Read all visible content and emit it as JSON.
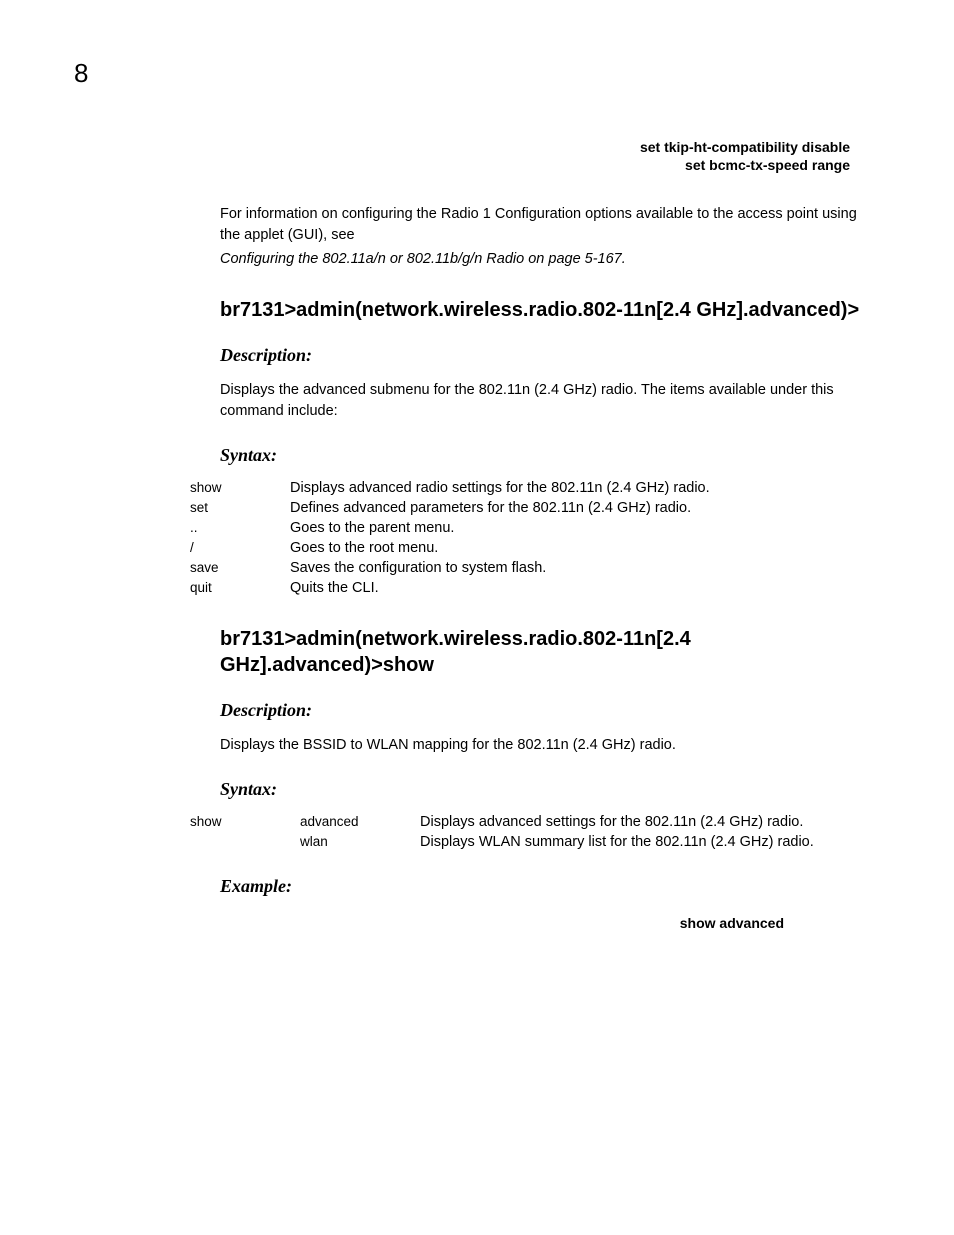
{
  "page_number": "8",
  "code_block_top": {
    "line1": "set tkip-ht-compatibility disable",
    "line2": "set bcmc-tx-speed range"
  },
  "intro_paragraph": "For information on configuring the Radio 1 Configuration options available to the access point using the applet (GUI), see",
  "intro_reference": "Configuring the 802.11a/n or 802.11b/g/n Radio on page 5-167.",
  "section1": {
    "heading": "br7131>admin(network.wireless.radio.802-11n[2.4 GHz].advanced)>",
    "description_label": "Description:",
    "description_text": "Displays the advanced submenu for the 802.11n (2.4 GHz) radio. The items available under this command include:",
    "syntax_label": "Syntax:",
    "syntax_rows": [
      {
        "cmd": "show",
        "desc": "Displays advanced radio settings for the 802.11n (2.4 GHz) radio."
      },
      {
        "cmd": "set",
        "desc": "Defines advanced parameters for the 802.11n (2.4 GHz) radio."
      },
      {
        "cmd": "..",
        "desc": "Goes to the parent menu."
      },
      {
        "cmd": "/",
        "desc": "Goes to the root menu."
      },
      {
        "cmd": "save",
        "desc": "Saves the configuration to system flash."
      },
      {
        "cmd": "quit",
        "desc": "Quits the CLI."
      }
    ]
  },
  "section2": {
    "heading": "br7131>admin(network.wireless.radio.802-11n[2.4 GHz].advanced)>show",
    "description_label": "Description:",
    "description_text": "Displays the BSSID to WLAN mapping for the 802.11n (2.4 GHz) radio.",
    "syntax_label": "Syntax:",
    "syntax_rows": [
      {
        "col1": "show",
        "col2": "advanced",
        "desc": "Displays advanced settings for the 802.11n (2.4 GHz) radio."
      },
      {
        "col1": "",
        "col2": "wlan",
        "desc": "Displays WLAN summary list for the 802.11n (2.4 GHz) radio."
      }
    ],
    "example_label": "Example:",
    "example_code": "show advanced"
  }
}
